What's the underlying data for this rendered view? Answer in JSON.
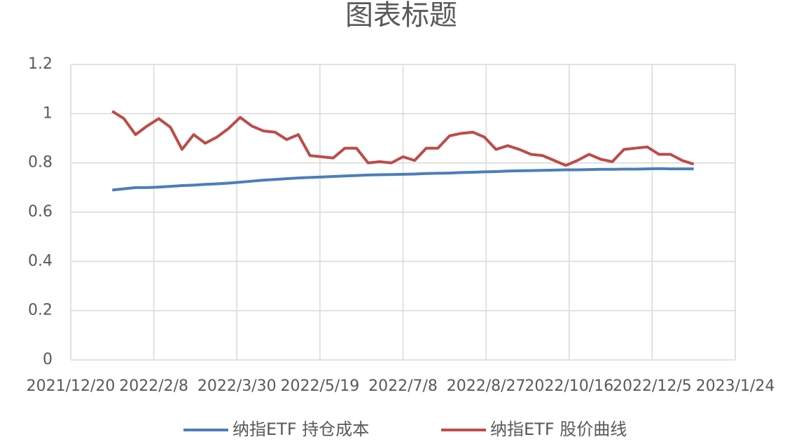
{
  "chart_data": {
    "type": "line",
    "title": "图表标题",
    "x": [
      "2022/1/14",
      "2022/1/21",
      "2022/1/28",
      "2022/2/4",
      "2022/2/11",
      "2022/2/18",
      "2022/2/25",
      "2022/3/4",
      "2022/3/11",
      "2022/3/18",
      "2022/3/25",
      "2022/4/1",
      "2022/4/8",
      "2022/4/15",
      "2022/4/22",
      "2022/4/29",
      "2022/5/6",
      "2022/5/13",
      "2022/5/20",
      "2022/5/27",
      "2022/6/3",
      "2022/6/10",
      "2022/6/17",
      "2022/6/24",
      "2022/7/1",
      "2022/7/8",
      "2022/7/15",
      "2022/7/22",
      "2022/7/29",
      "2022/8/5",
      "2022/8/12",
      "2022/8/19",
      "2022/8/26",
      "2022/9/2",
      "2022/9/9",
      "2022/9/16",
      "2022/9/23",
      "2022/9/30",
      "2022/10/7",
      "2022/10/14",
      "2022/10/21",
      "2022/10/28",
      "2022/11/4",
      "2022/11/11",
      "2022/11/18",
      "2022/11/25",
      "2022/12/2",
      "2022/12/9",
      "2022/12/16",
      "2022/12/23",
      "2022/12/30"
    ],
    "series": [
      {
        "name": "纳指ETF 持仓成本",
        "color": "#4a7ebb",
        "values": [
          0.69,
          0.695,
          0.7,
          0.7,
          0.702,
          0.705,
          0.708,
          0.71,
          0.713,
          0.715,
          0.718,
          0.722,
          0.726,
          0.73,
          0.733,
          0.736,
          0.739,
          0.741,
          0.743,
          0.745,
          0.747,
          0.749,
          0.751,
          0.752,
          0.753,
          0.754,
          0.755,
          0.757,
          0.758,
          0.759,
          0.761,
          0.762,
          0.764,
          0.765,
          0.767,
          0.768,
          0.769,
          0.77,
          0.771,
          0.772,
          0.772,
          0.773,
          0.774,
          0.774,
          0.775,
          0.775,
          0.776,
          0.777,
          0.776,
          0.776,
          0.776
        ]
      },
      {
        "name": "纳指ETF 股价曲线",
        "color": "#be4b48",
        "values": [
          1.01,
          0.98,
          0.915,
          0.95,
          0.98,
          0.945,
          0.855,
          0.915,
          0.88,
          0.905,
          0.94,
          0.985,
          0.95,
          0.93,
          0.925,
          0.895,
          0.915,
          0.83,
          0.825,
          0.82,
          0.86,
          0.86,
          0.8,
          0.805,
          0.8,
          0.825,
          0.81,
          0.86,
          0.86,
          0.91,
          0.92,
          0.925,
          0.905,
          0.855,
          0.87,
          0.855,
          0.835,
          0.83,
          0.81,
          0.79,
          0.81,
          0.835,
          0.815,
          0.805,
          0.855,
          0.86,
          0.865,
          0.835,
          0.835,
          0.81,
          0.795
        ]
      }
    ],
    "xlim": [
      "2021/12/20",
      "2023/1/24"
    ],
    "xticks": [
      "2021/12/20",
      "2022/2/8",
      "2022/3/30",
      "2022/5/19",
      "2022/7/8",
      "2022/8/27",
      "2022/10/16",
      "2022/12/5",
      "2023/1/24"
    ],
    "ylim": [
      0,
      1.2
    ],
    "yticks": [
      0,
      0.2,
      0.4,
      0.6,
      0.8,
      1,
      1.2
    ],
    "grid": true,
    "legend": "bottom"
  }
}
